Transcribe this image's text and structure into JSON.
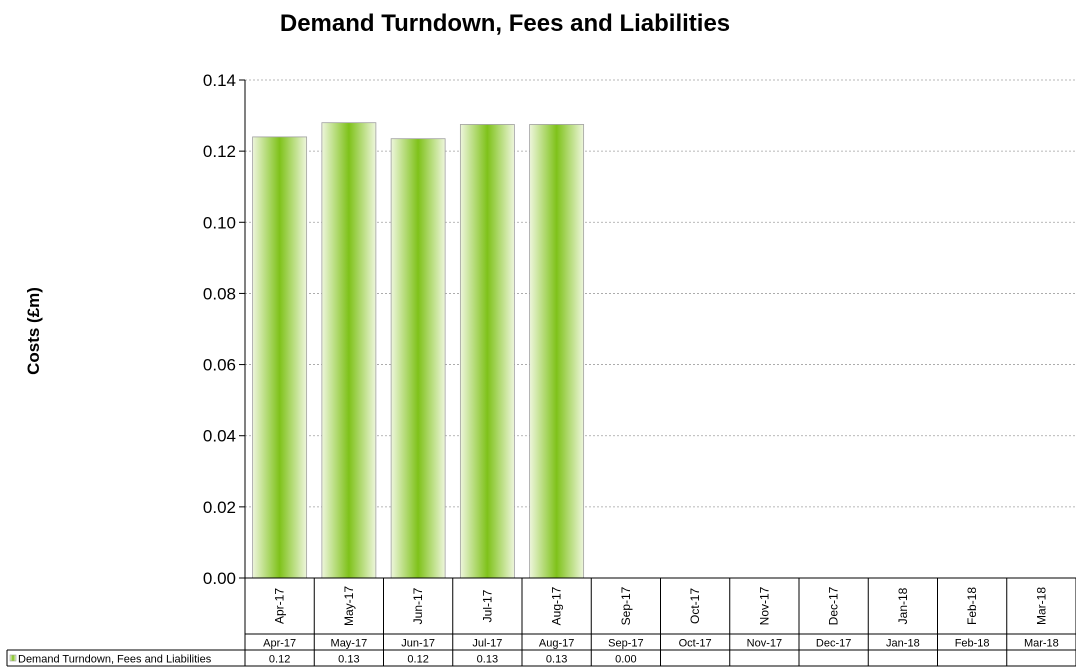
{
  "chart_data": {
    "type": "bar",
    "title": "Demand Turndown, Fees and Liabilities",
    "ylabel": "Costs (£m)",
    "xlabel": "",
    "ylim": [
      0,
      0.14
    ],
    "yticks": [
      "0.00",
      "0.02",
      "0.04",
      "0.06",
      "0.08",
      "0.10",
      "0.12",
      "0.14"
    ],
    "grid": "horizontal dashed",
    "categories": [
      "Apr-17",
      "May-17",
      "Jun-17",
      "Jul-17",
      "Aug-17",
      "Sep-17",
      "Oct-17",
      "Nov-17",
      "Dec-17",
      "Jan-18",
      "Feb-18",
      "Mar-18"
    ],
    "series": [
      {
        "name": "Demand Turndown, Fees and Liabilities",
        "values": [
          0.124,
          0.128,
          0.1235,
          0.1275,
          0.1275,
          0.0,
          null,
          null,
          null,
          null,
          null,
          null
        ]
      }
    ],
    "data_table": {
      "series_label": "Demand Turndown, Fees and Liabilities",
      "values": [
        "0.12",
        "0.13",
        "0.12",
        "0.13",
        "0.13",
        "0.00",
        "",
        "",
        "",
        "",
        "",
        ""
      ]
    },
    "colors": {
      "bar_center": "#7fc21a",
      "bar_edge": "#eef6dc",
      "bar_border": "#a0a0a0",
      "grid": "#a0a0a0"
    }
  }
}
